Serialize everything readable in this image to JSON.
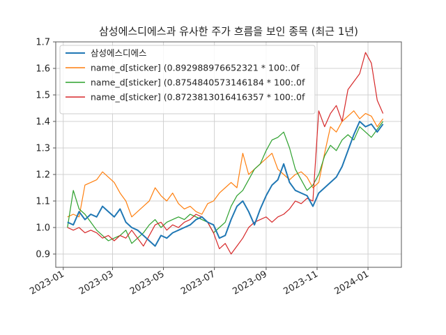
{
  "chart_data": {
    "type": "line",
    "title": "삼성에스디에스과 유사한 주가 흐름을 보인 종목 (최근 1년)",
    "xlabel": "",
    "ylabel": "",
    "ylim": [
      0.85,
      1.7
    ],
    "yticks": [
      0.9,
      1.0,
      1.1,
      1.2,
      1.3,
      1.4,
      1.5,
      1.6,
      1.7
    ],
    "ytick_labels": [
      "0.9",
      "1.0",
      "1.1",
      "1.2",
      "1.3",
      "1.4",
      "1.5",
      "1.6",
      "1.7"
    ],
    "xlim": [
      "2022-12-23",
      "2024-02-10"
    ],
    "xticks": [
      "2023-01-01",
      "2023-03-01",
      "2023-05-01",
      "2023-07-01",
      "2023-09-01",
      "2023-11-01",
      "2024-01-01"
    ],
    "xtick_labels": [
      "2023-01",
      "2023-03",
      "2023-05",
      "2023-07",
      "2023-09",
      "2023-11",
      "2024-01"
    ],
    "grid": true,
    "legend_position": "top-left",
    "series": [
      {
        "name": "삼성에스디에스",
        "color": "#1f77b4",
        "points": [
          [
            "2023-01-06",
            1.02
          ],
          [
            "2023-01-13",
            1.01
          ],
          [
            "2023-01-20",
            1.06
          ],
          [
            "2023-01-27",
            1.03
          ],
          [
            "2023-02-03",
            1.05
          ],
          [
            "2023-02-10",
            1.04
          ],
          [
            "2023-02-17",
            1.08
          ],
          [
            "2023-02-24",
            1.06
          ],
          [
            "2023-03-03",
            1.04
          ],
          [
            "2023-03-10",
            1.07
          ],
          [
            "2023-03-17",
            1.02
          ],
          [
            "2023-03-24",
            1.0
          ],
          [
            "2023-03-31",
            0.99
          ],
          [
            "2023-04-07",
            0.97
          ],
          [
            "2023-04-14",
            0.95
          ],
          [
            "2023-04-21",
            0.93
          ],
          [
            "2023-04-28",
            0.97
          ],
          [
            "2023-05-05",
            0.96
          ],
          [
            "2023-05-12",
            0.98
          ],
          [
            "2023-05-19",
            0.99
          ],
          [
            "2023-05-26",
            1.0
          ],
          [
            "2023-06-02",
            1.01
          ],
          [
            "2023-06-09",
            1.03
          ],
          [
            "2023-06-16",
            1.04
          ],
          [
            "2023-06-23",
            1.02
          ],
          [
            "2023-06-30",
            1.01
          ],
          [
            "2023-07-07",
            0.96
          ],
          [
            "2023-07-14",
            0.97
          ],
          [
            "2023-07-21",
            1.03
          ],
          [
            "2023-07-28",
            1.08
          ],
          [
            "2023-08-04",
            1.1
          ],
          [
            "2023-08-11",
            1.06
          ],
          [
            "2023-08-18",
            1.01
          ],
          [
            "2023-08-25",
            1.07
          ],
          [
            "2023-09-01",
            1.12
          ],
          [
            "2023-09-08",
            1.16
          ],
          [
            "2023-09-15",
            1.18
          ],
          [
            "2023-09-22",
            1.24
          ],
          [
            "2023-09-29",
            1.17
          ],
          [
            "2023-10-06",
            1.14
          ],
          [
            "2023-10-13",
            1.13
          ],
          [
            "2023-10-20",
            1.12
          ],
          [
            "2023-10-27",
            1.08
          ],
          [
            "2023-11-03",
            1.13
          ],
          [
            "2023-11-10",
            1.15
          ],
          [
            "2023-11-17",
            1.17
          ],
          [
            "2023-11-24",
            1.19
          ],
          [
            "2023-12-01",
            1.23
          ],
          [
            "2023-12-08",
            1.29
          ],
          [
            "2023-12-15",
            1.35
          ],
          [
            "2023-12-22",
            1.4
          ],
          [
            "2023-12-29",
            1.38
          ],
          [
            "2024-01-05",
            1.39
          ],
          [
            "2024-01-12",
            1.36
          ],
          [
            "2024-01-19",
            1.39
          ]
        ]
      },
      {
        "name": "name_d[sticker]  (0.892988976652321 * 100:.0f",
        "color": "#ff7f0e",
        "points": [
          [
            "2023-01-06",
            1.04
          ],
          [
            "2023-01-13",
            1.05
          ],
          [
            "2023-01-20",
            1.04
          ],
          [
            "2023-01-27",
            1.16
          ],
          [
            "2023-02-03",
            1.17
          ],
          [
            "2023-02-10",
            1.18
          ],
          [
            "2023-02-17",
            1.21
          ],
          [
            "2023-02-24",
            1.19
          ],
          [
            "2023-03-03",
            1.17
          ],
          [
            "2023-03-10",
            1.13
          ],
          [
            "2023-03-17",
            1.1
          ],
          [
            "2023-03-24",
            1.04
          ],
          [
            "2023-03-31",
            1.06
          ],
          [
            "2023-04-07",
            1.08
          ],
          [
            "2023-04-14",
            1.1
          ],
          [
            "2023-04-21",
            1.15
          ],
          [
            "2023-04-28",
            1.12
          ],
          [
            "2023-05-05",
            1.1
          ],
          [
            "2023-05-12",
            1.13
          ],
          [
            "2023-05-19",
            1.09
          ],
          [
            "2023-05-26",
            1.07
          ],
          [
            "2023-06-02",
            1.08
          ],
          [
            "2023-06-09",
            1.06
          ],
          [
            "2023-06-16",
            1.05
          ],
          [
            "2023-06-23",
            1.09
          ],
          [
            "2023-06-30",
            1.1
          ],
          [
            "2023-07-07",
            1.13
          ],
          [
            "2023-07-14",
            1.15
          ],
          [
            "2023-07-21",
            1.17
          ],
          [
            "2023-07-28",
            1.15
          ],
          [
            "2023-08-04",
            1.28
          ],
          [
            "2023-08-11",
            1.2
          ],
          [
            "2023-08-18",
            1.22
          ],
          [
            "2023-08-25",
            1.24
          ],
          [
            "2023-09-01",
            1.26
          ],
          [
            "2023-09-08",
            1.28
          ],
          [
            "2023-09-15",
            1.22
          ],
          [
            "2023-09-22",
            1.2
          ],
          [
            "2023-09-29",
            1.18
          ],
          [
            "2023-10-06",
            1.2
          ],
          [
            "2023-10-13",
            1.21
          ],
          [
            "2023-10-20",
            1.19
          ],
          [
            "2023-10-27",
            1.15
          ],
          [
            "2023-11-03",
            1.17
          ],
          [
            "2023-11-10",
            1.28
          ],
          [
            "2023-11-17",
            1.38
          ],
          [
            "2023-11-24",
            1.36
          ],
          [
            "2023-12-01",
            1.4
          ],
          [
            "2023-12-08",
            1.42
          ],
          [
            "2023-12-15",
            1.44
          ],
          [
            "2023-12-22",
            1.41
          ],
          [
            "2023-12-29",
            1.43
          ],
          [
            "2024-01-05",
            1.42
          ],
          [
            "2024-01-12",
            1.38
          ],
          [
            "2024-01-19",
            1.41
          ]
        ]
      },
      {
        "name": "name_d[sticker]  (0.8754840573146184 * 100:.0f",
        "color": "#2ca02c",
        "points": [
          [
            "2023-01-06",
            1.0
          ],
          [
            "2023-01-13",
            1.14
          ],
          [
            "2023-01-20",
            1.07
          ],
          [
            "2023-01-27",
            1.05
          ],
          [
            "2023-02-03",
            1.02
          ],
          [
            "2023-02-10",
            0.99
          ],
          [
            "2023-02-17",
            0.97
          ],
          [
            "2023-02-24",
            0.95
          ],
          [
            "2023-03-03",
            0.96
          ],
          [
            "2023-03-10",
            0.97
          ],
          [
            "2023-03-17",
            0.99
          ],
          [
            "2023-03-24",
            0.94
          ],
          [
            "2023-03-31",
            0.96
          ],
          [
            "2023-04-07",
            0.98
          ],
          [
            "2023-04-14",
            1.01
          ],
          [
            "2023-04-21",
            1.03
          ],
          [
            "2023-04-28",
            1.0
          ],
          [
            "2023-05-05",
            1.02
          ],
          [
            "2023-05-12",
            1.03
          ],
          [
            "2023-05-19",
            1.04
          ],
          [
            "2023-05-26",
            1.03
          ],
          [
            "2023-06-02",
            1.05
          ],
          [
            "2023-06-09",
            1.04
          ],
          [
            "2023-06-16",
            1.03
          ],
          [
            "2023-06-23",
            1.02
          ],
          [
            "2023-06-30",
            0.98
          ],
          [
            "2023-07-07",
            1.0
          ],
          [
            "2023-07-14",
            1.02
          ],
          [
            "2023-07-21",
            1.08
          ],
          [
            "2023-07-28",
            1.12
          ],
          [
            "2023-08-04",
            1.14
          ],
          [
            "2023-08-11",
            1.18
          ],
          [
            "2023-08-18",
            1.22
          ],
          [
            "2023-08-25",
            1.24
          ],
          [
            "2023-09-01",
            1.29
          ],
          [
            "2023-09-08",
            1.33
          ],
          [
            "2023-09-15",
            1.34
          ],
          [
            "2023-09-22",
            1.36
          ],
          [
            "2023-09-29",
            1.3
          ],
          [
            "2023-10-06",
            1.22
          ],
          [
            "2023-10-13",
            1.18
          ],
          [
            "2023-10-20",
            1.14
          ],
          [
            "2023-10-27",
            1.16
          ],
          [
            "2023-11-03",
            1.2
          ],
          [
            "2023-11-10",
            1.27
          ],
          [
            "2023-11-17",
            1.31
          ],
          [
            "2023-11-24",
            1.29
          ],
          [
            "2023-12-01",
            1.33
          ],
          [
            "2023-12-08",
            1.35
          ],
          [
            "2023-12-15",
            1.33
          ],
          [
            "2023-12-22",
            1.38
          ],
          [
            "2023-12-29",
            1.36
          ],
          [
            "2024-01-05",
            1.34
          ],
          [
            "2024-01-12",
            1.37
          ],
          [
            "2024-01-19",
            1.4
          ]
        ]
      },
      {
        "name": "name_d[sticker]  (0.8723813016416357 * 100:.0f",
        "color": "#d62728",
        "points": [
          [
            "2023-01-06",
            1.0
          ],
          [
            "2023-01-13",
            0.99
          ],
          [
            "2023-01-20",
            1.0
          ],
          [
            "2023-01-27",
            0.98
          ],
          [
            "2023-02-03",
            0.99
          ],
          [
            "2023-02-10",
            0.98
          ],
          [
            "2023-02-17",
            0.96
          ],
          [
            "2023-02-24",
            0.97
          ],
          [
            "2023-03-03",
            0.95
          ],
          [
            "2023-03-10",
            0.97
          ],
          [
            "2023-03-17",
            0.96
          ],
          [
            "2023-03-24",
            0.99
          ],
          [
            "2023-03-31",
            0.96
          ],
          [
            "2023-04-07",
            0.93
          ],
          [
            "2023-04-14",
            0.97
          ],
          [
            "2023-04-21",
            1.01
          ],
          [
            "2023-04-28",
            1.02
          ],
          [
            "2023-05-05",
            0.99
          ],
          [
            "2023-05-12",
            1.01
          ],
          [
            "2023-05-19",
            1.0
          ],
          [
            "2023-05-26",
            1.02
          ],
          [
            "2023-06-02",
            1.03
          ],
          [
            "2023-06-09",
            1.05
          ],
          [
            "2023-06-16",
            1.04
          ],
          [
            "2023-06-23",
            1.02
          ],
          [
            "2023-06-30",
            0.98
          ],
          [
            "2023-07-07",
            0.92
          ],
          [
            "2023-07-14",
            0.94
          ],
          [
            "2023-07-21",
            0.9
          ],
          [
            "2023-07-28",
            0.93
          ],
          [
            "2023-08-04",
            0.96
          ],
          [
            "2023-08-11",
            1.0
          ],
          [
            "2023-08-18",
            1.02
          ],
          [
            "2023-08-25",
            1.03
          ],
          [
            "2023-09-01",
            1.04
          ],
          [
            "2023-09-08",
            1.02
          ],
          [
            "2023-09-15",
            1.04
          ],
          [
            "2023-09-22",
            1.05
          ],
          [
            "2023-09-29",
            1.07
          ],
          [
            "2023-10-06",
            1.1
          ],
          [
            "2023-10-13",
            1.09
          ],
          [
            "2023-10-20",
            1.11
          ],
          [
            "2023-10-27",
            1.1
          ],
          [
            "2023-11-03",
            1.44
          ],
          [
            "2023-11-10",
            1.38
          ],
          [
            "2023-11-17",
            1.43
          ],
          [
            "2023-11-24",
            1.46
          ],
          [
            "2023-12-01",
            1.4
          ],
          [
            "2023-12-08",
            1.52
          ],
          [
            "2023-12-15",
            1.55
          ],
          [
            "2023-12-22",
            1.58
          ],
          [
            "2023-12-29",
            1.66
          ],
          [
            "2024-01-05",
            1.62
          ],
          [
            "2024-01-12",
            1.48
          ],
          [
            "2024-01-19",
            1.43
          ]
        ]
      }
    ]
  }
}
